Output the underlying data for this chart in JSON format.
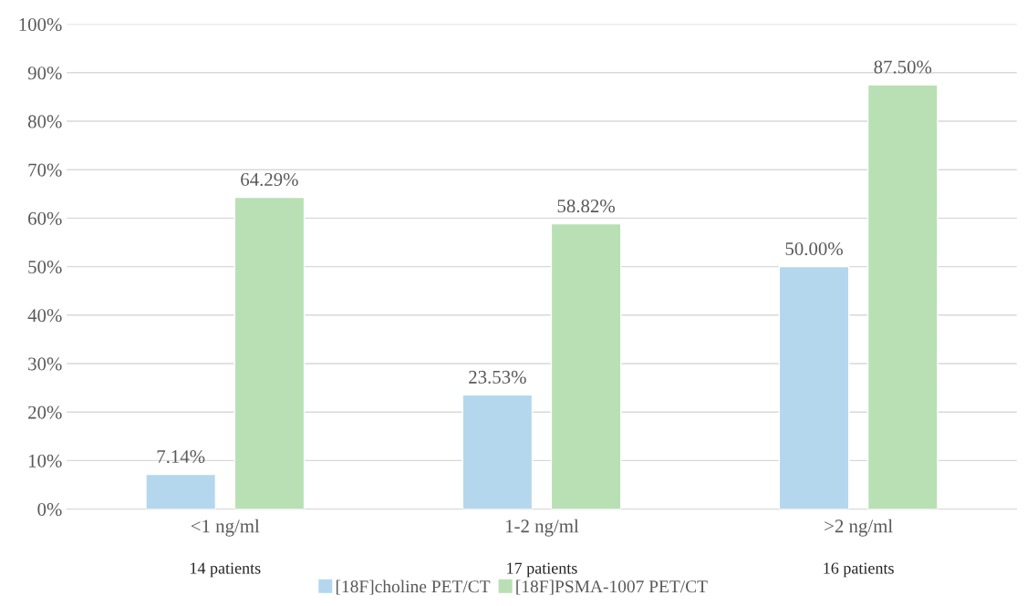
{
  "chart_data": {
    "type": "bar",
    "categories": [
      "<1 ng/ml",
      "1-2 ng/ml",
      ">2 ng/ml"
    ],
    "series": [
      {
        "name": "[18F]choline PET/CT",
        "color": "#b4d7ee",
        "values": [
          7.14,
          23.53,
          50.0
        ],
        "value_labels": [
          "7.14%",
          "23.53%",
          "50.00%"
        ]
      },
      {
        "name": "[18F]PSMA-1007 PET/CT",
        "color": "#b9e0b4",
        "values": [
          64.29,
          58.82,
          87.5
        ],
        "value_labels": [
          "64.29%",
          "58.82%",
          "87.50%"
        ]
      }
    ],
    "ylim": [
      0,
      100
    ],
    "yticks": [
      {
        "value": 0,
        "label": "0%"
      },
      {
        "value": 10,
        "label": "10%"
      },
      {
        "value": 20,
        "label": "20%"
      },
      {
        "value": 30,
        "label": "30%"
      },
      {
        "value": 40,
        "label": "40%"
      },
      {
        "value": 50,
        "label": "50%"
      },
      {
        "value": 60,
        "label": "60%"
      },
      {
        "value": 70,
        "label": "70%"
      },
      {
        "value": 80,
        "label": "80%"
      },
      {
        "value": 90,
        "label": "90%"
      },
      {
        "value": 100,
        "label": "100%"
      }
    ],
    "annotations": [
      "14 patients",
      "17 patients",
      "16 patients"
    ],
    "grid": "y",
    "legend": "bottom"
  }
}
